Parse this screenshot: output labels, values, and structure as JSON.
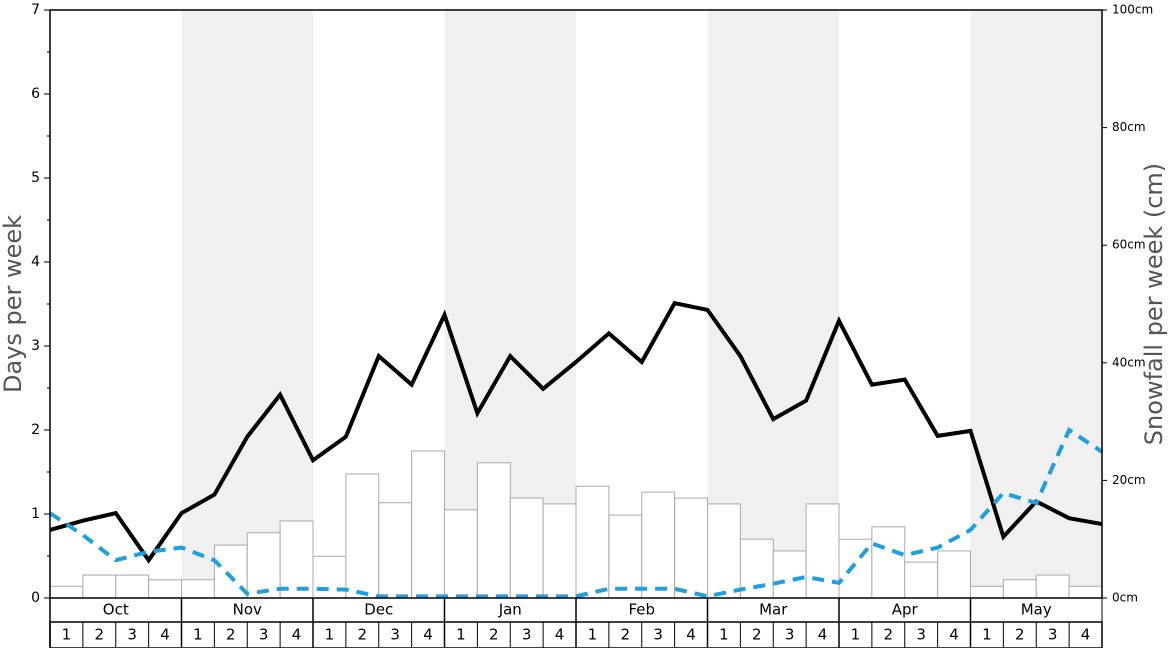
{
  "chart_data": {
    "type": "combo",
    "y_label": "Days per week",
    "y2_label": "Snowfall per week (cm)",
    "months": [
      "Oct",
      "Nov",
      "Dec",
      "Jan",
      "Feb",
      "Mar",
      "Apr",
      "May"
    ],
    "weeks": [
      "1",
      "2",
      "3",
      "4"
    ],
    "ylim": [
      0,
      7
    ],
    "yticks": [
      0,
      1,
      2,
      3,
      4,
      5,
      6,
      7
    ],
    "yminor_ticks": [
      0.5,
      1.5,
      2.5,
      3.5,
      4.5,
      5.5,
      6.5
    ],
    "y2lim": [
      0,
      100
    ],
    "y2ticks": [
      {
        "value": 0,
        "label": "0cm"
      },
      {
        "value": 20,
        "label": "20cm"
      },
      {
        "value": 40,
        "label": "40cm"
      },
      {
        "value": 60,
        "label": "60cm"
      },
      {
        "value": 80,
        "label": "80cm"
      },
      {
        "value": 100,
        "label": "100cm"
      }
    ],
    "shade_color": "#f0f0f0",
    "series": [
      {
        "type": "bar",
        "axis": "y2",
        "color": "#ffffff",
        "edge_color": "#aaaaaa",
        "values": [
          2.0,
          3.9,
          3.9,
          3.1,
          3.1,
          9.0,
          11.1,
          13.1,
          7.1,
          21.1,
          16.2,
          25.0,
          15.0,
          23.0,
          17.0,
          16.0,
          19.0,
          14.1,
          18.0,
          17.0,
          16.0,
          10.0,
          8.0,
          16.0,
          10.0,
          12.1,
          6.1,
          8.0,
          2.0,
          3.1,
          3.9,
          2.0
        ]
      },
      {
        "type": "line",
        "color": "#000000",
        "dashed": false,
        "values": [
          0.81,
          0.92,
          1.01,
          0.45,
          1.01,
          1.23,
          1.92,
          2.42,
          1.64,
          1.92,
          2.88,
          2.54,
          3.37,
          2.2,
          2.88,
          2.49,
          2.81,
          3.15,
          2.81,
          3.51,
          3.43,
          2.88,
          2.13,
          2.35,
          3.3,
          2.54,
          2.6,
          1.93,
          1.99,
          0.73,
          1.15,
          0.95,
          0.88
        ]
      },
      {
        "type": "line",
        "color": "#1ea0e0",
        "dashed": true,
        "values": [
          1.01,
          0.75,
          0.45,
          0.55,
          0.6,
          0.45,
          0.05,
          0.11,
          0.11,
          0.1,
          0.02,
          0.02,
          0.02,
          0.02,
          0.02,
          0.02,
          0.02,
          0.11,
          0.11,
          0.11,
          0.02,
          0.1,
          0.17,
          0.25,
          0.18,
          0.65,
          0.51,
          0.6,
          0.81,
          1.25,
          1.13,
          2.0,
          1.74
        ]
      }
    ]
  }
}
